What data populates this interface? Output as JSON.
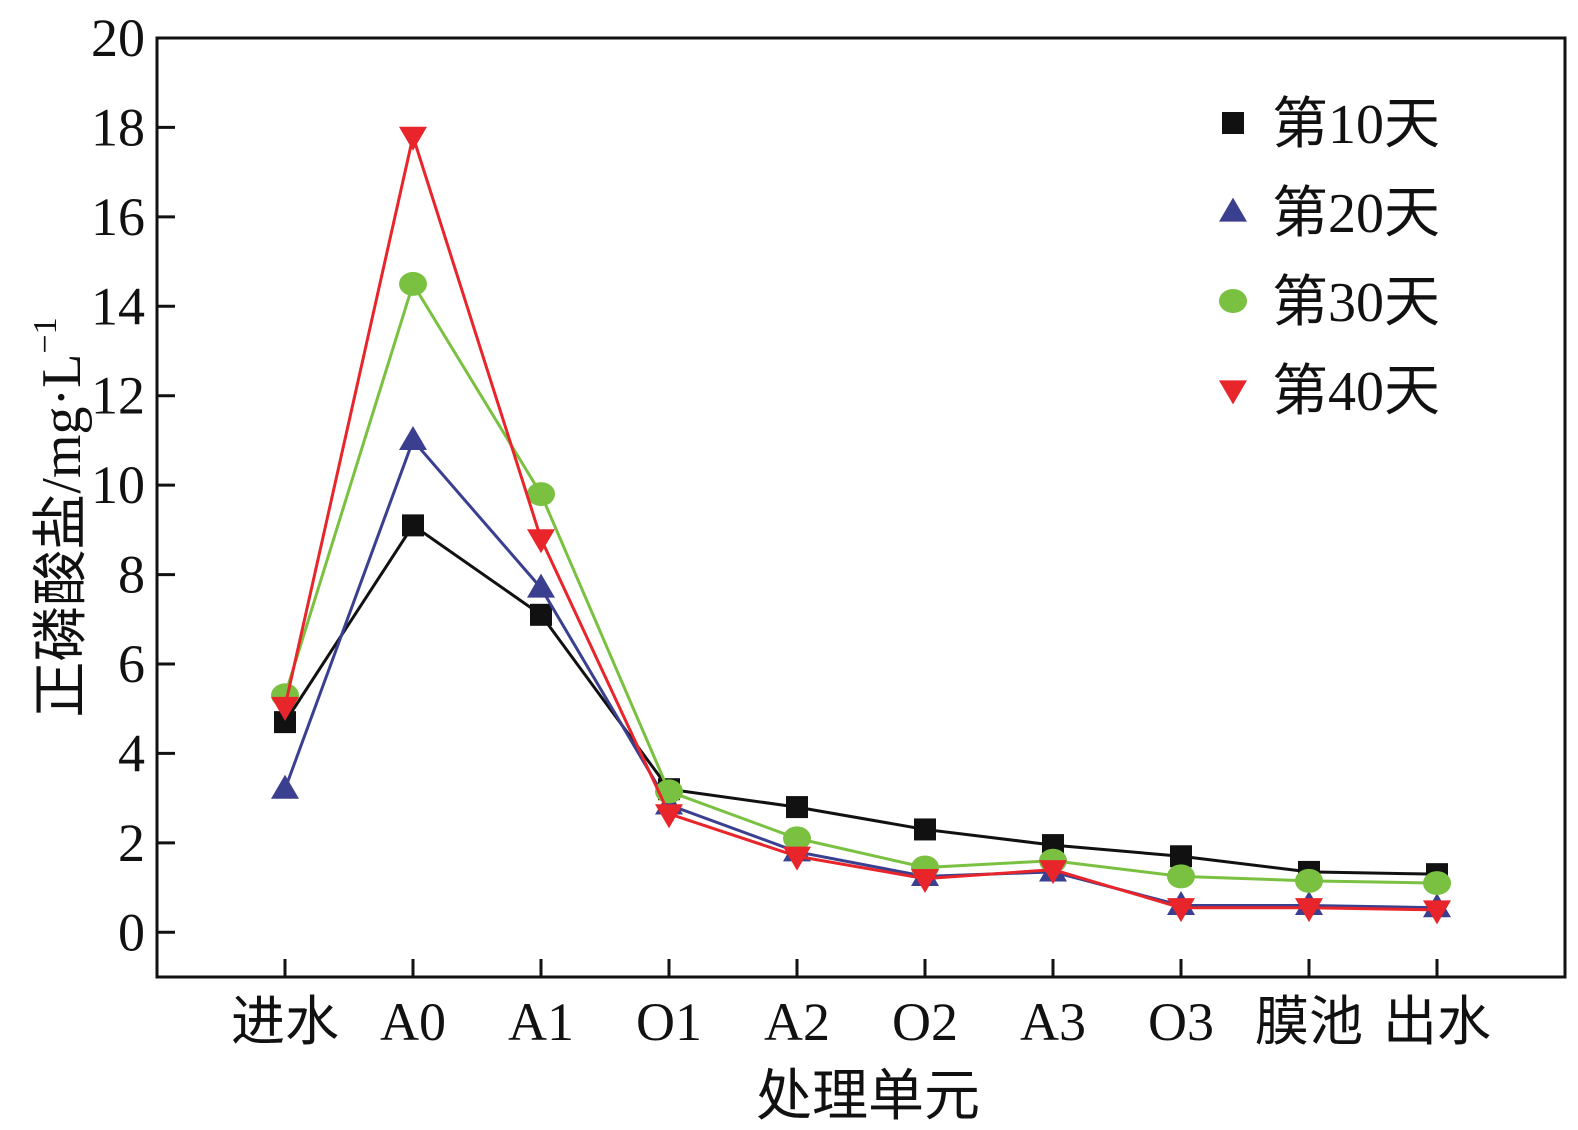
{
  "chart_data": {
    "type": "line",
    "title": "",
    "xlabel": "处理单元",
    "ylabel_main": "正磷酸盐/mg·L",
    "ylabel_sup": "−1",
    "ylim": [
      -1,
      20
    ],
    "yticks": [
      "0",
      "2",
      "4",
      "6",
      "8",
      "10",
      "12",
      "14",
      "16",
      "18",
      "20"
    ],
    "categories": [
      "进水",
      "A0",
      "A1",
      "O1",
      "A2",
      "O2",
      "A3",
      "O3",
      "膜池",
      "出水"
    ],
    "legend_position": "top-right",
    "grid": false,
    "series": [
      {
        "name": "第10天",
        "marker": "square",
        "color": "#111111",
        "values": [
          4.7,
          9.1,
          7.1,
          3.2,
          2.8,
          2.3,
          1.95,
          1.7,
          1.35,
          1.3
        ]
      },
      {
        "name": "第20天",
        "marker": "triangle-up",
        "color": "#3a3f8f",
        "values": [
          3.2,
          11.0,
          7.7,
          2.85,
          1.8,
          1.25,
          1.35,
          0.6,
          0.6,
          0.55
        ]
      },
      {
        "name": "第30天",
        "marker": "circle",
        "color": "#7ac142",
        "values": [
          5.3,
          14.5,
          9.8,
          3.15,
          2.1,
          1.45,
          1.6,
          1.25,
          1.15,
          1.1
        ]
      },
      {
        "name": "第40天",
        "marker": "triangle-down",
        "color": "#e8252b",
        "values": [
          5.05,
          17.8,
          8.8,
          2.65,
          1.7,
          1.2,
          1.4,
          0.55,
          0.55,
          0.5
        ]
      }
    ]
  }
}
